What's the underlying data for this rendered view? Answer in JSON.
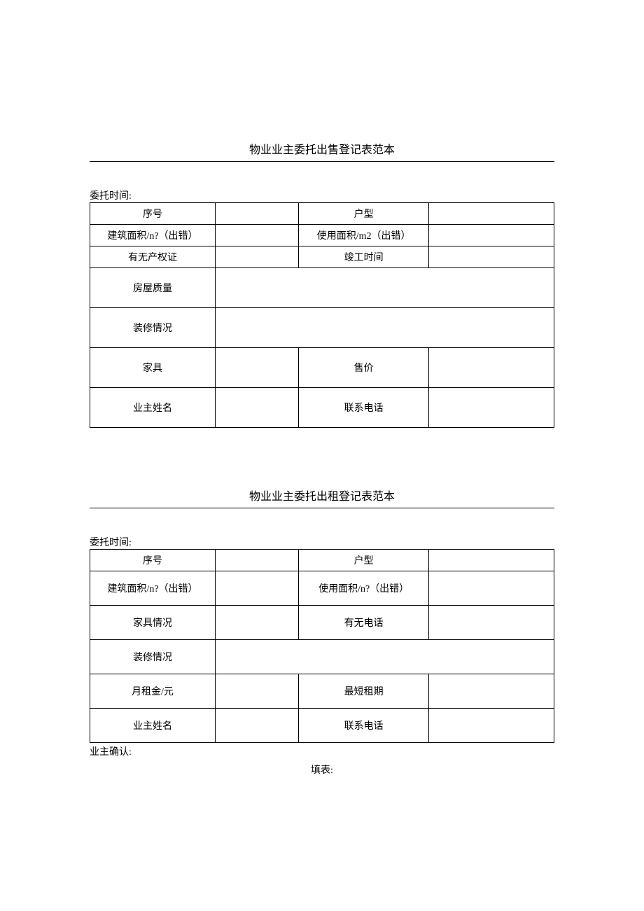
{
  "section1": {
    "title": "物业业主委托出售登记表范本",
    "time_label": "委托时间:",
    "rows": [
      {
        "type": "short",
        "label1": "序号",
        "val1": "",
        "label2": "户型",
        "val2": "",
        "colspan": false
      },
      {
        "type": "short",
        "label1": "建筑面积/n?（出错）",
        "val1": "",
        "label2": "使用面积/m2（出错）",
        "val2": "",
        "colspan": false
      },
      {
        "type": "short",
        "label1": "有无产权证",
        "val1": "",
        "label2": "竣工时间",
        "val2": "",
        "colspan": false
      },
      {
        "type": "tall",
        "label1": "房屋质量",
        "val1": "",
        "label2": "",
        "val2": "",
        "colspan": true
      },
      {
        "type": "tall",
        "label1": "装修情况",
        "val1": "",
        "label2": "",
        "val2": "",
        "colspan": true
      },
      {
        "type": "tall",
        "label1": "家具",
        "val1": "",
        "label2": "售价",
        "val2": "",
        "colspan": false
      },
      {
        "type": "tall",
        "label1": "业主姓名",
        "val1": "",
        "label2": "联系电话",
        "val2": "",
        "colspan": false
      }
    ]
  },
  "section2": {
    "title": "物业业主委托出租登记表范本",
    "time_label": "委托时间:",
    "rows": [
      {
        "type": "short",
        "label1": "序号",
        "val1": "",
        "label2": "户型",
        "val2": "",
        "colspan": false
      },
      {
        "type": "med",
        "label1": "建筑面积/n?（出错）",
        "val1": "",
        "label2": "使用面积/n?（出错）",
        "val2": "",
        "colspan": false
      },
      {
        "type": "med",
        "label1": "家具情况",
        "val1": "",
        "label2": "有无电话",
        "val2": "",
        "colspan": false
      },
      {
        "type": "med",
        "label1": "装修情况",
        "val1": "",
        "label2": "",
        "val2": "",
        "colspan": true
      },
      {
        "type": "med",
        "label1": "月租金/元",
        "val1": "",
        "label2": "最短租期",
        "val2": "",
        "colspan": false
      },
      {
        "type": "med",
        "label1": "业主姓名",
        "val1": "",
        "label2": "联系电话",
        "val2": "",
        "colspan": false
      }
    ],
    "footer_left": "业主确认:",
    "footer_center": "填表:"
  }
}
